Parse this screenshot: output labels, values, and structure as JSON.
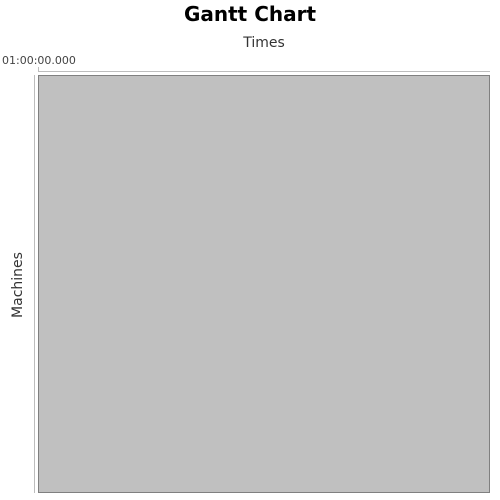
{
  "chart_data": {
    "type": "bar",
    "title": "Gantt Chart",
    "xlabel": "Times",
    "ylabel": "Machines",
    "x_tick_labels": [
      "01:00:00.000"
    ],
    "categories": [],
    "series": [],
    "plot_background": "#c0c0c0",
    "grid": false
  }
}
